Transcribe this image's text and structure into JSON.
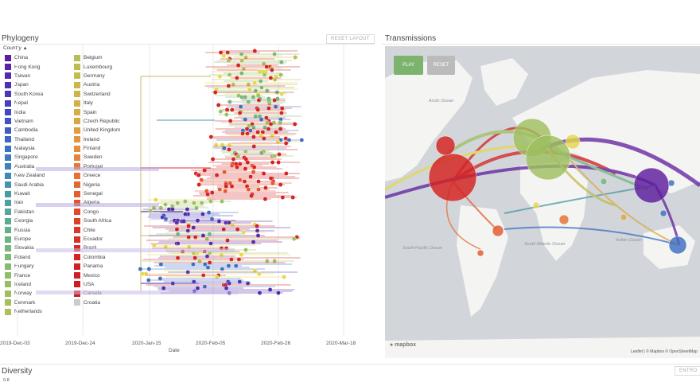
{
  "phylogeny": {
    "title": "Phylogeny",
    "reset_label": "RESET LAYOUT",
    "legend_header": "Country",
    "legend_col1": [
      {
        "label": "China",
        "color": "#5e1d9d"
      },
      {
        "label": "Hong Kong",
        "color": "#5a23a3"
      },
      {
        "label": "Taiwan",
        "color": "#5529aa"
      },
      {
        "label": "Japan",
        "color": "#4f30b2"
      },
      {
        "label": "South Korea",
        "color": "#4a38b8"
      },
      {
        "label": "Nepal",
        "color": "#4640bc"
      },
      {
        "label": "India",
        "color": "#4249bf"
      },
      {
        "label": "Vietnam",
        "color": "#3f53c2"
      },
      {
        "label": "Cambodia",
        "color": "#3d5dc3"
      },
      {
        "label": "Thailand",
        "color": "#3c66c3"
      },
      {
        "label": "Malaysia",
        "color": "#3c70c1"
      },
      {
        "label": "Singapore",
        "color": "#3d79bf"
      },
      {
        "label": "Australia",
        "color": "#3f82bb"
      },
      {
        "label": "New Zealand",
        "color": "#428ab6"
      },
      {
        "label": "Saudi Arabia",
        "color": "#4692b0"
      },
      {
        "label": "Kuwait",
        "color": "#4a99a9"
      },
      {
        "label": "Iran",
        "color": "#50a0a2"
      },
      {
        "label": "Pakistan",
        "color": "#56a69a"
      },
      {
        "label": "Georgia",
        "color": "#5dab92"
      },
      {
        "label": "Russia",
        "color": "#64b08b"
      },
      {
        "label": "Europe",
        "color": "#6cb483"
      },
      {
        "label": "Slovakia",
        "color": "#74b77c"
      },
      {
        "label": "Poland",
        "color": "#7cba75"
      },
      {
        "label": "Hungary",
        "color": "#85bc6f"
      },
      {
        "label": "France",
        "color": "#8dbe69"
      },
      {
        "label": "Iceland",
        "color": "#96bf64"
      },
      {
        "label": "Norway",
        "color": "#9ec05f"
      },
      {
        "label": "Denmark",
        "color": "#a6c05b"
      },
      {
        "label": "Netherlands",
        "color": "#aec057"
      }
    ],
    "legend_col2": [
      {
        "label": "Belgium",
        "color": "#b5bf54"
      },
      {
        "label": "Luxembourg",
        "color": "#bcbd51"
      },
      {
        "label": "Germany",
        "color": "#c3bb4f"
      },
      {
        "label": "Austria",
        "color": "#c9b84d"
      },
      {
        "label": "Switzerland",
        "color": "#cfb44b"
      },
      {
        "label": "Italy",
        "color": "#d4b04a"
      },
      {
        "label": "Spain",
        "color": "#d9aa48"
      },
      {
        "label": "Czech Republic",
        "color": "#dda446"
      },
      {
        "label": "United Kingdom",
        "color": "#e09d44"
      },
      {
        "label": "Ireland",
        "color": "#e29541"
      },
      {
        "label": "Finland",
        "color": "#e48d3f"
      },
      {
        "label": "Sweden",
        "color": "#e5843c"
      },
      {
        "label": "Portugal",
        "color": "#e57b39"
      },
      {
        "label": "Greece",
        "color": "#e57136"
      },
      {
        "label": "Nigeria",
        "color": "#e46733"
      },
      {
        "label": "Senegal",
        "color": "#e35d30"
      },
      {
        "label": "Algeria",
        "color": "#e1532d"
      },
      {
        "label": "Congo",
        "color": "#df492a"
      },
      {
        "label": "South Africa",
        "color": "#dd3f28"
      },
      {
        "label": "Chile",
        "color": "#db3626"
      },
      {
        "label": "Ecuador",
        "color": "#d92e24"
      },
      {
        "label": "Brazil",
        "color": "#d72723"
      },
      {
        "label": "Colombia",
        "color": "#d52222"
      },
      {
        "label": "Panama",
        "color": "#d31f21"
      },
      {
        "label": "Mexico",
        "color": "#d11d21"
      },
      {
        "label": "USA",
        "color": "#cf1c20"
      },
      {
        "label": "Canada",
        "color": "#cd1c20"
      },
      {
        "label": "Croatia",
        "color": "#cccccc"
      }
    ],
    "x_ticks": [
      "2019-Dec-03",
      "2019-Dec-24",
      "2020-Jan-15",
      "2020-Feb-05",
      "2020-Feb-26",
      "2020-Mar-18"
    ],
    "x_axis_label": "Date"
  },
  "transmissions": {
    "title": "Transmissions",
    "play_label": "PLAY",
    "reset_label": "RESET",
    "map_labels": {
      "arctic_ocean": "Arctic Ocean",
      "south_atlantic": "South Atlantic Ocean",
      "south_pacific": "South Pacific Ocean",
      "indian_ocean": "Indian Ocean"
    },
    "logo": "mapbox",
    "attribution": "Leaflet | © Mapbox © OpenStreetMap"
  },
  "diversity": {
    "title": "Diversity",
    "entropy_label": "ENTRO",
    "y_tick": "0.8"
  },
  "colors": {
    "play_green": "#7cb36f",
    "reset_grey": "#bbbbbb",
    "map_land": "#f4f4f2",
    "map_water": "#d2d5d9"
  }
}
